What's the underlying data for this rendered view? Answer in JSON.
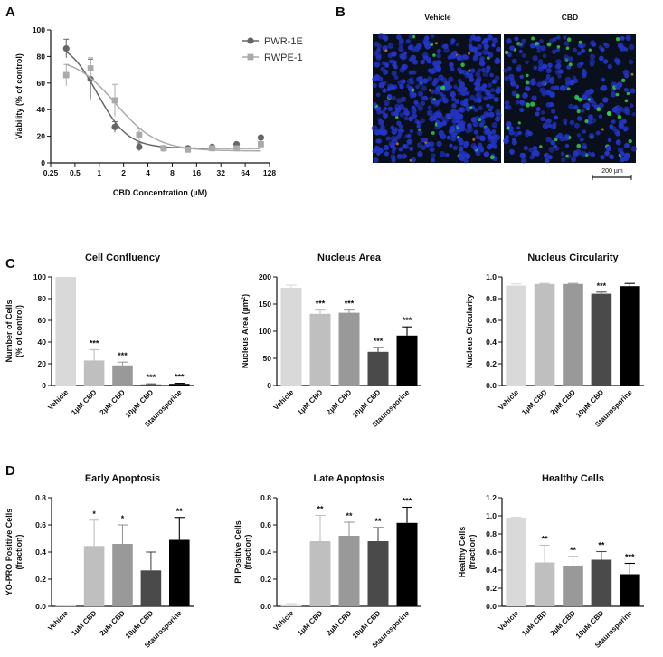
{
  "panel_letters": {
    "a": "A",
    "b": "B",
    "c": "C",
    "d": "D"
  },
  "microscopy": {
    "left_label": "Vehicle",
    "right_label": "CBD",
    "scale_bar": "200 µm",
    "colors": {
      "background": "#0a0f1c",
      "nuclei": "#2335c8",
      "green": "#35d94a",
      "orange": "#d87a2a"
    }
  },
  "chart_data": [
    {
      "id": "viability",
      "type": "line",
      "xscale": "log2",
      "xlabel": "CBD Concentration (µM)",
      "ylabel": "Viability (% of control)",
      "xticks": [
        "0.25",
        "0.5",
        "1",
        "2",
        "4",
        "8",
        "16",
        "32",
        "64",
        "128"
      ],
      "xtick_values": [
        0.25,
        0.5,
        1,
        2,
        4,
        8,
        16,
        32,
        64,
        128
      ],
      "ylim": [
        0,
        100
      ],
      "yticks": [
        0,
        20,
        40,
        60,
        80,
        100
      ],
      "series": [
        {
          "name": "PWR-1E",
          "color": "#666666",
          "marker": "circle",
          "x": [
            0.39,
            0.78,
            1.56,
            3.12,
            6.25,
            12.5,
            25,
            50,
            100
          ],
          "y": [
            86,
            63,
            27,
            12,
            11,
            11,
            12,
            14,
            19
          ],
          "err": [
            7,
            15,
            4,
            3,
            1,
            1,
            1,
            1,
            1
          ],
          "fit": {
            "top": 93,
            "bottom": 11,
            "ec50": 0.95,
            "hill": 2.3
          }
        },
        {
          "name": "RWPE-1",
          "color": "#aaaaaa",
          "marker": "square",
          "x": [
            0.39,
            0.78,
            1.56,
            3.12,
            6.25,
            12.5,
            25,
            50,
            100
          ],
          "y": [
            66,
            71,
            47,
            21,
            11,
            10,
            11,
            11,
            14
          ],
          "err": [
            8,
            8,
            12,
            5,
            2,
            1,
            1,
            1,
            2
          ],
          "fit": {
            "top": 80,
            "bottom": 9,
            "ec50": 1.6,
            "hill": 1.7
          }
        }
      ]
    },
    {
      "id": "confluency",
      "type": "bar",
      "title": "Cell Confluency",
      "ylabel": "Number of Cells|(% of control)",
      "categories": [
        "Vehicle",
        "1µM CBD",
        "2µM CBD",
        "10µM CBD",
        "Staurosporine"
      ],
      "values": [
        100,
        23,
        18.5,
        1,
        1.5
      ],
      "errors": [
        0,
        10,
        3,
        0.5,
        0.5
      ],
      "significance": [
        "",
        "***",
        "***",
        "***",
        "***"
      ],
      "ylim": [
        0,
        100
      ],
      "yticks": [
        "0",
        "20",
        "40",
        "60",
        "80",
        "100"
      ],
      "ytick_values": [
        0,
        20,
        40,
        60,
        80,
        100
      ]
    },
    {
      "id": "nucleus_area",
      "type": "bar",
      "title": "Nucleus Area",
      "ylabel": "Nucleus Area (µm²)",
      "categories": [
        "Vehicle",
        "1µM CBD",
        "2µM CBD",
        "10µM CBD",
        "Staurosporine"
      ],
      "values": [
        180,
        132,
        134,
        62,
        92
      ],
      "errors": [
        5,
        7,
        5,
        8,
        16
      ],
      "significance": [
        "",
        "***",
        "***",
        "***",
        "***"
      ],
      "ylim": [
        0,
        200
      ],
      "yticks": [
        "0",
        "50",
        "100",
        "150",
        "200"
      ],
      "ytick_values": [
        0,
        50,
        100,
        150,
        200
      ]
    },
    {
      "id": "nucleus_circularity",
      "type": "bar",
      "title": "Nucleus Circularity",
      "ylabel": "Nucleus Circularity",
      "categories": [
        "Vehicle",
        "1µM CBD",
        "2µM CBD",
        "10µM CBD",
        "Staurosporine"
      ],
      "values": [
        0.92,
        0.935,
        0.935,
        0.845,
        0.915
      ],
      "errors": [
        0.015,
        0.005,
        0.005,
        0.015,
        0.025
      ],
      "significance": [
        "",
        "",
        "",
        "***",
        ""
      ],
      "ylim": [
        0,
        1
      ],
      "yticks": [
        "0.0",
        "0.2",
        "0.4",
        "0.6",
        "0.8",
        "1.0"
      ],
      "ytick_values": [
        0,
        0.2,
        0.4,
        0.6,
        0.8,
        1.0
      ]
    },
    {
      "id": "early_apoptosis",
      "type": "bar",
      "title": "Early Apoptosis",
      "ylabel": "YO-PRO Positive Cells|(fraction)",
      "categories": [
        "Vehicle",
        "1µM CBD",
        "2µM CBD",
        "10µM CBD",
        "Staurosporine"
      ],
      "values": [
        0.005,
        0.445,
        0.46,
        0.265,
        0.49
      ],
      "errors": [
        0.003,
        0.19,
        0.14,
        0.135,
        0.165
      ],
      "significance": [
        "",
        "*",
        "*",
        "",
        "**"
      ],
      "ylim": [
        0,
        0.8
      ],
      "yticks": [
        "0.0",
        "0.2",
        "0.4",
        "0.6",
        "0.8"
      ],
      "ytick_values": [
        0,
        0.2,
        0.4,
        0.6,
        0.8
      ]
    },
    {
      "id": "late_apoptosis",
      "type": "bar",
      "title": "Late Apoptosis",
      "ylabel": "PI Positive Cells|(fraction)",
      "categories": [
        "Vehicle",
        "1µM CBD",
        "2µM CBD",
        "10µM CBD",
        "Staurosporine"
      ],
      "values": [
        0.015,
        0.48,
        0.52,
        0.48,
        0.615
      ],
      "errors": [
        0.005,
        0.19,
        0.1,
        0.1,
        0.115
      ],
      "significance": [
        "",
        "**",
        "**",
        "**",
        "***"
      ],
      "ylim": [
        0,
        0.8
      ],
      "yticks": [
        "0.0",
        "0.2",
        "0.4",
        "0.6",
        "0.8"
      ],
      "ytick_values": [
        0,
        0.2,
        0.4,
        0.6,
        0.8
      ]
    },
    {
      "id": "healthy_cells",
      "type": "bar",
      "title": "Healthy Cells",
      "ylabel": "Healthy Cells|(fraction)",
      "categories": [
        "Vehicle",
        "1µM CBD",
        "2µM CBD",
        "10µM CBD",
        "Staurosporine"
      ],
      "values": [
        0.98,
        0.485,
        0.45,
        0.515,
        0.355
      ],
      "errors": [
        0.005,
        0.19,
        0.1,
        0.09,
        0.12
      ],
      "significance": [
        "",
        "**",
        "**",
        "**",
        "***"
      ],
      "ylim": [
        0,
        1.2
      ],
      "yticks": [
        "0.0",
        "0.2",
        "0.4",
        "0.6",
        "0.8",
        "1.0",
        "1.2"
      ],
      "ytick_values": [
        0,
        0.2,
        0.4,
        0.6,
        0.8,
        1.0,
        1.2
      ]
    }
  ],
  "bar_colors": [
    "#d9d9d9",
    "#bfbfbf",
    "#999999",
    "#4a4a4a",
    "#000000"
  ]
}
